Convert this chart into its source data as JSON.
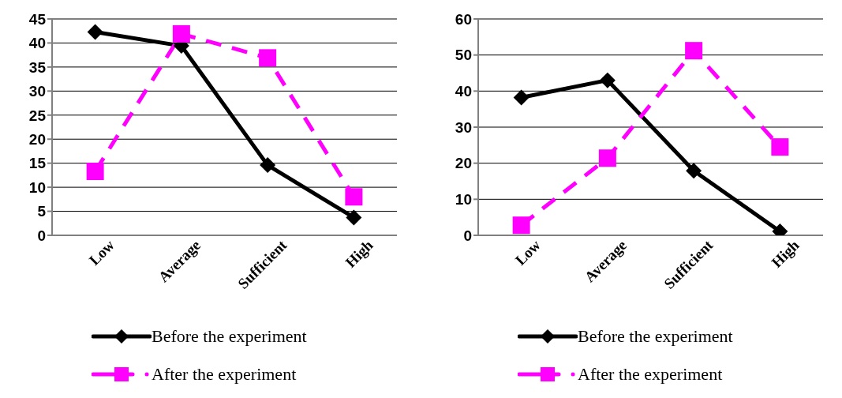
{
  "chart_data": [
    {
      "type": "line",
      "categories": [
        "Low",
        "Average",
        "Sufficient",
        "High"
      ],
      "ylim": [
        0,
        45
      ],
      "yticks": [
        0,
        5,
        10,
        15,
        20,
        25,
        30,
        35,
        40,
        45
      ],
      "grid": "y",
      "legend": "bottom",
      "series": [
        {
          "name": "Before the experiment",
          "color": "#000000",
          "values": [
            42.3,
            39.4,
            14.6,
            3.7
          ],
          "marker": "diamond",
          "line_style": "solid"
        },
        {
          "name": "After the experiment",
          "color": "#ff00ff",
          "values": [
            13.3,
            41.9,
            36.9,
            8.0
          ],
          "marker": "square",
          "line_style": "dashed"
        }
      ]
    },
    {
      "type": "line",
      "categories": [
        "Low",
        "Average",
        "Sufficient",
        "High"
      ],
      "ylim": [
        0,
        60
      ],
      "yticks": [
        0,
        10,
        20,
        30,
        40,
        50,
        60
      ],
      "grid": "y",
      "legend": "bottom",
      "series": [
        {
          "name": "Before the experiment",
          "color": "#000000",
          "values": [
            38.2,
            43.0,
            17.9,
            1.1
          ],
          "marker": "diamond",
          "line_style": "solid"
        },
        {
          "name": "After the experiment",
          "color": "#ff00ff",
          "values": [
            2.8,
            21.4,
            51.2,
            24.5
          ],
          "marker": "square",
          "line_style": "dashed"
        }
      ]
    }
  ]
}
